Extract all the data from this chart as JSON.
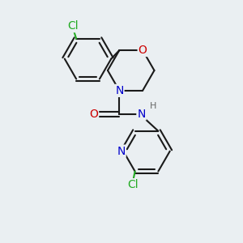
{
  "bg_color": "#eaeff2",
  "line_color": "#1a1a1a",
  "bond_width": 1.5,
  "atom_colors": {
    "Cl": "#22aa22",
    "O": "#cc0000",
    "N": "#0000cc",
    "H": "#666666",
    "C": "#1a1a1a"
  },
  "font_size": 9
}
